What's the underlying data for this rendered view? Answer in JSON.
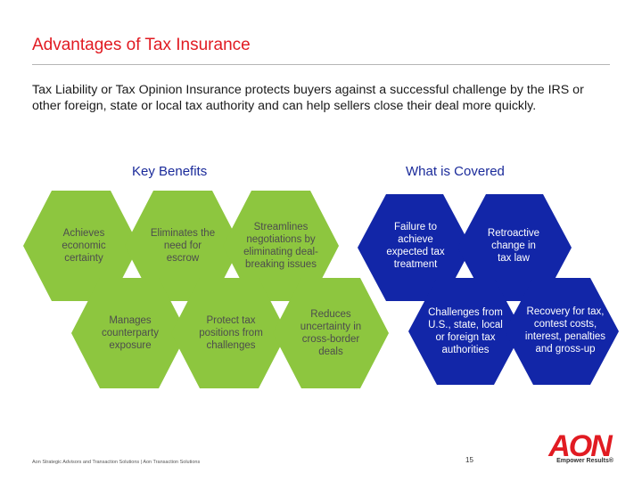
{
  "slide": {
    "title": "Advantages of Tax Insurance",
    "intro": "Tax Liability or Tax Opinion Insurance protects buyers against a successful challenge by the IRS or other foreign, state or local tax authority and can help sellers close their deal more quickly.",
    "key_benefits_heading": "Key Benefits",
    "covered_heading": "What is Covered"
  },
  "benefits": [
    "Achieves economic certainty",
    "Eliminates the need for escrow",
    "Streamlines negotiations by eliminating deal-breaking issues",
    "Manages counterparty exposure",
    "Protect tax positions from challenges",
    "Reduces uncertainty in cross-border deals"
  ],
  "covered": [
    "Failure to achieve expected tax treatment",
    "Retroactive change in tax law",
    "Challenges from U.S., state, local or foreign tax authorities",
    "Recovery for tax, contest costs, interest, penalties and gross-up"
  ],
  "footer": {
    "text": "Aon Strategic Advisors and Transaction Solutions | Aon Transaction Solutions",
    "page": "15",
    "logo_text": "AON",
    "tagline": "Empower Results®"
  },
  "colors": {
    "title_red": "#e11b22",
    "hex_green": "#8dc63f",
    "hex_blue": "#1226a8",
    "heading_blue": "#1a2a9a"
  }
}
